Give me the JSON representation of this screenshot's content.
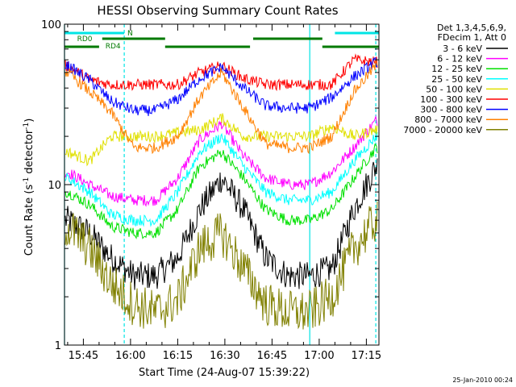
{
  "chart_data": {
    "type": "line",
    "title": "HESSI Observing Summary Count Rates",
    "xlabel": "Start Time (24-Aug-07 15:39:22)",
    "ylabel": "Count Rate (s",
    "ylabel_sup": "-1",
    "ylabel_tail": " detector",
    "ylabel_close": ")",
    "yscale": "log",
    "ylim": [
      1,
      100
    ],
    "xlim": [
      "15:39",
      "17:19"
    ],
    "x_tick_labels": [
      "15:45",
      "16:00",
      "16:15",
      "16:30",
      "16:45",
      "17:00",
      "17:15"
    ],
    "y_tick_labels": [
      "1",
      "10",
      "100"
    ],
    "legend_header": [
      "Det 1,3,4,5,6,9,",
      "FDecim 1, Att 0"
    ],
    "legend_position": "right",
    "timestamp": "25-Jan-2010 00:24",
    "flags": [
      {
        "name": "N",
        "color": "#00e5e5",
        "spans": [
          [
            "15:39",
            "15:58"
          ],
          [
            "17:05",
            "17:19"
          ]
        ]
      },
      {
        "name": "RD0",
        "color": "#007a00",
        "spans": [
          [
            "15:39",
            "15:50"
          ],
          [
            "15:51",
            "16:11"
          ],
          [
            "16:11",
            "16:38"
          ],
          [
            "16:39",
            "17:01"
          ],
          [
            "17:01",
            "17:19"
          ]
        ]
      }
    ],
    "flag_labels": [
      {
        "text": "N",
        "at": "15:59",
        "row": 1
      },
      {
        "text": "RD0",
        "at": "15:43",
        "row": 2
      },
      {
        "text": "RD4",
        "at": "15:52",
        "row": 3
      }
    ],
    "markers": [
      {
        "t": "15:39",
        "style": "solid",
        "color": "#00e5e5"
      },
      {
        "t": "15:58",
        "style": "dashed",
        "color": "#00e5e5"
      },
      {
        "t": "16:57",
        "style": "solid",
        "color": "#00e5e5"
      },
      {
        "t": "17:18",
        "style": "dashed",
        "color": "#00e5e5"
      }
    ],
    "series": [
      {
        "name": "3 - 6 keV",
        "color": "#000000",
        "values": [
          6,
          5,
          3.5,
          2.7,
          2.7,
          3.5,
          7,
          11,
          7,
          3.5,
          2.7,
          2.7,
          3,
          7,
          13
        ]
      },
      {
        "name": "6 - 12 keV",
        "color": "#ff00ff",
        "values": [
          12,
          10,
          8.5,
          8,
          8,
          11,
          19,
          24,
          15,
          11,
          10,
          10,
          12,
          17,
          25
        ]
      },
      {
        "name": "12 - 25 keV",
        "color": "#00e000",
        "values": [
          9,
          7.5,
          5.5,
          5,
          5,
          7,
          13,
          16,
          11,
          7,
          6,
          6,
          7,
          11,
          17
        ]
      },
      {
        "name": "25 - 50 keV",
        "color": "#00ffff",
        "values": [
          11,
          9,
          6.5,
          6,
          6,
          9,
          16,
          20,
          13,
          9,
          8,
          8,
          9,
          14,
          20
        ]
      },
      {
        "name": "50 - 100 keV",
        "color": "#e0e000",
        "values": [
          16,
          14,
          20,
          20,
          20,
          21,
          22,
          26,
          20,
          20,
          20,
          20,
          23,
          20,
          22
        ]
      },
      {
        "name": "100 - 300 keV",
        "color": "#ff0000",
        "values": [
          55,
          45,
          42,
          42,
          42,
          42,
          50,
          55,
          46,
          42,
          42,
          42,
          42,
          60,
          58
        ]
      },
      {
        "name": "300 - 800 keV",
        "color": "#0000ff",
        "values": [
          55,
          45,
          33,
          29,
          29,
          34,
          46,
          54,
          40,
          31,
          30,
          30,
          35,
          47,
          58
        ]
      },
      {
        "name": "800 - 7000 keV",
        "color": "#ff8000",
        "values": [
          50,
          38,
          28,
          17,
          17,
          20,
          35,
          50,
          30,
          18,
          17,
          17,
          20,
          38,
          55
        ]
      },
      {
        "name": "7000 - 20000 keV",
        "color": "#808000",
        "values": [
          5.5,
          4,
          2.4,
          1.8,
          1.6,
          1.9,
          4,
          5,
          3,
          1.8,
          1.6,
          1.6,
          2,
          4,
          6
        ]
      }
    ],
    "x": [
      "15:40",
      "15:47",
      "15:54",
      "16:01",
      "16:08",
      "16:15",
      "16:22",
      "16:29",
      "16:36",
      "16:43",
      "16:50",
      "16:57",
      "17:04",
      "17:11",
      "17:18"
    ]
  }
}
